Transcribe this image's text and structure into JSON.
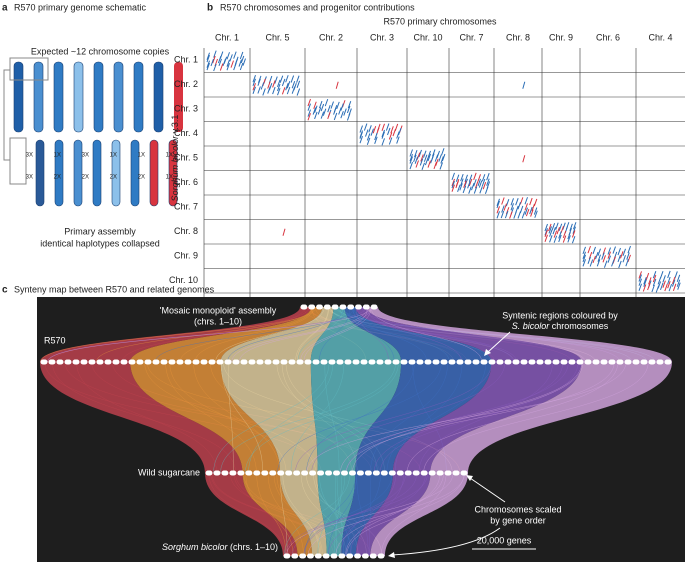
{
  "panel_a": {
    "letter": "a",
    "title": "R570 primary genome schematic",
    "top_label": "Expected ~12 chromosome copies",
    "copy_labels": [
      "3X",
      "3X",
      "1X",
      "2X",
      "3X",
      "2X",
      "1X",
      "2X",
      "1X",
      "2X",
      "1X",
      "1X"
    ],
    "bottom_label_1": "Primary assembly",
    "bottom_label_2": "identical haplotypes collapsed"
  },
  "panel_b": {
    "letter": "b",
    "title": "R570 chromosomes and progenitor contributions",
    "x_title": "R570 primary chromosomes",
    "columns": [
      "Chr. 1",
      "Chr. 5",
      "Chr. 2",
      "Chr. 3",
      "Chr. 10",
      "Chr. 7",
      "Chr. 8",
      "Chr. 9",
      "Chr. 6",
      "Chr. 4"
    ],
    "rows": [
      "Chr. 1",
      "Chr. 2",
      "Chr. 3",
      "Chr. 4",
      "Chr. 5",
      "Chr. 6",
      "Chr. 7",
      "Chr. 8",
      "Chr. 9",
      "Chr. 10"
    ],
    "y_title_italic": "Sorghum bicolor",
    "y_title_rest": " v.3.1"
  },
  "panel_c": {
    "letter": "c",
    "title": "Synteny map between R570 and related genomes",
    "mosaic_1": "'Mosaic monoploid' assembly",
    "mosaic_2": "(chrs. 1–10)",
    "r570": "R570",
    "wild": "Wild sugarcane",
    "syntenic_1": "Syntenic regions coloured by",
    "syntenic_2_italic": "S. bicolor",
    "syntenic_2_rest": " chromosomes",
    "scaled_1": "Chromosomes scaled",
    "scaled_2": "by gene order",
    "scale_bar": "20,000 genes",
    "sorghum_italic": "Sorghum bicolor",
    "sorghum_rest": " (chrs. 1–10)"
  }
}
